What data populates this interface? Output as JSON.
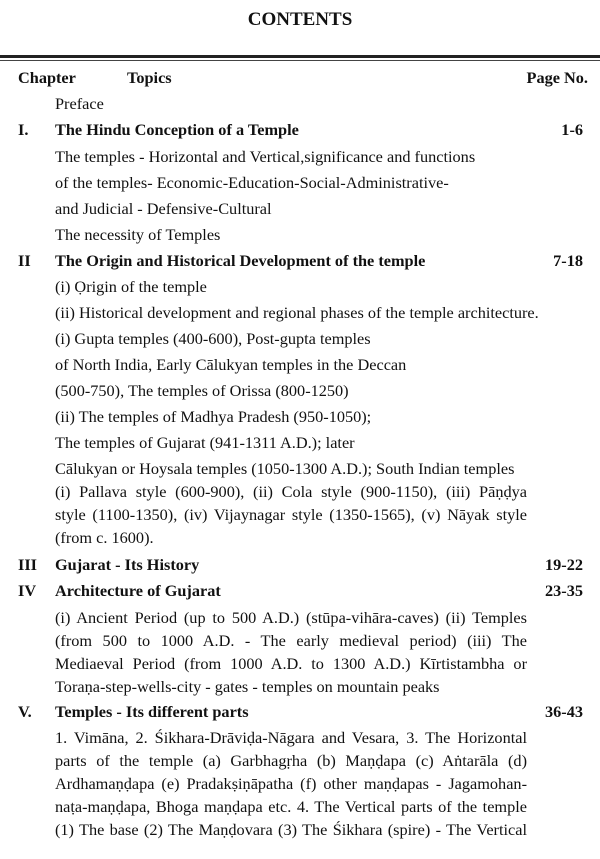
{
  "title": "CONTENTS",
  "header": {
    "chapter": "Chapter",
    "topics": "Topics",
    "page": "Page No."
  },
  "preface": "Preface",
  "chapters": [
    {
      "num": "I.",
      "title": "The Hindu Conception of a Temple",
      "pages": "1-6",
      "lines": [
        "The temples - Horizontal and Vertical,significance and functions",
        "of the temples- Economic-Education-Social-Administrative-",
        "and Judicial - Defensive-Cultural",
        "The necessity of Temples"
      ]
    },
    {
      "num": "II",
      "title": "The Origin and Historical Development of the temple",
      "pages": "7-18",
      "lines": [
        "(i) Ọrigin of the temple",
        "(ii) Historical development and regional phases of the temple architecture.",
        "(i) Gupta temples (400-600), Post-gupta temples",
        "of North India, Early Cālukyan temples in the Deccan",
        "(500-750), The temples of Orissa (800-1250)",
        "(ii) The temples of Madhya Pradesh (950-1050);",
        "The temples of Gujarat (941-1311 A.D.); later",
        "Cālukyan or Hoysala temples (1050-1300 A.D.); South Indian temples",
        "(i) Pallava style (600-900), (ii) Cola style (900-1150), (iii) Pāṇḍya",
        "style (1100-1350), (iv) Vijaynagar style (1350-1565), (v) Nāyak style",
        "(from c. 1600)."
      ]
    },
    {
      "num": "III",
      "title": "Gujarat - Its History",
      "pages": "19-22",
      "lines": []
    },
    {
      "num": "IV",
      "title": "Architecture of Gujarat",
      "pages": "23-35",
      "lines": [
        "(i) Ancient Period (up to 500 A.D.) (stūpa-vihāra-caves) (ii) Temples",
        "(from 500 to 1000 A.D. - The early medieval period) (iii) The",
        "Mediaeval Period (from 1000 A.D. to 1300 A.D.) Kīrtistambha or",
        "Toraṇa-step-wells-city - gates - temples on mountain peaks"
      ]
    },
    {
      "num": "V.",
      "title": "Temples - Its different parts",
      "pages": "36-43",
      "lines": [
        "1. Vimāna, 2. Śikhara-Drāviḍa-Nāgara and Vesara, 3. The Horizontal",
        "parts of the temple (a) Garbhagṛha (b) Maṇḍapa (c) Aṅtarāla (d)",
        "Ardhamaṇḍapa (e) Pradakṣiṇāpatha (f) other maṇḍapas - Jagamohan-",
        "naṭa-maṇḍapa, Bhoga maṇḍapa etc. 4. The Vertical parts of the temple",
        "(1) The base (2) The Maṇḍovara (3) The Śikhara (spire) - The Vertical"
      ]
    }
  ]
}
